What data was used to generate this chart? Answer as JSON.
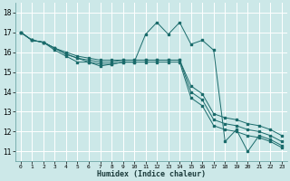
{
  "xlabel": "Humidex (Indice chaleur)",
  "bg_color": "#cce8e8",
  "grid_color": "#ffffff",
  "line_color": "#1a6b6b",
  "xlim": [
    -0.5,
    23.5
  ],
  "ylim": [
    10.5,
    18.5
  ],
  "xtick_labels": [
    "0",
    "1",
    "2",
    "3",
    "4",
    "5",
    "6",
    "7",
    "8",
    "9",
    "10",
    "11",
    "12",
    "13",
    "14",
    "15",
    "16",
    "17",
    "18",
    "19",
    "20",
    "21",
    "22",
    "23"
  ],
  "ytick_labels": [
    "11",
    "12",
    "13",
    "14",
    "15",
    "16",
    "17",
    "18"
  ],
  "ytick_vals": [
    11,
    12,
    13,
    14,
    15,
    16,
    17,
    18
  ],
  "series": [
    [
      17.0,
      16.6,
      16.5,
      16.1,
      15.8,
      15.5,
      15.5,
      15.3,
      15.4,
      15.5,
      15.5,
      16.9,
      17.5,
      16.9,
      17.5,
      16.4,
      16.6,
      16.1,
      11.5,
      12.1,
      11.0,
      11.8,
      11.6,
      11.3
    ],
    [
      17.0,
      16.6,
      16.5,
      16.2,
      15.9,
      15.7,
      15.5,
      15.4,
      15.4,
      15.5,
      15.5,
      15.5,
      15.5,
      15.5,
      15.5,
      13.7,
      13.3,
      12.3,
      12.1,
      12.0,
      11.8,
      11.7,
      11.5,
      11.2
    ],
    [
      17.0,
      16.6,
      16.5,
      16.2,
      15.9,
      15.7,
      15.6,
      15.5,
      15.5,
      15.6,
      15.6,
      15.6,
      15.6,
      15.6,
      15.6,
      14.0,
      13.6,
      12.6,
      12.4,
      12.3,
      12.1,
      12.0,
      11.8,
      11.5
    ],
    [
      17.0,
      16.6,
      16.5,
      16.2,
      16.0,
      15.8,
      15.7,
      15.6,
      15.6,
      15.6,
      15.6,
      15.6,
      15.6,
      15.6,
      15.6,
      14.3,
      13.9,
      12.9,
      12.7,
      12.6,
      12.4,
      12.3,
      12.1,
      11.8
    ]
  ]
}
